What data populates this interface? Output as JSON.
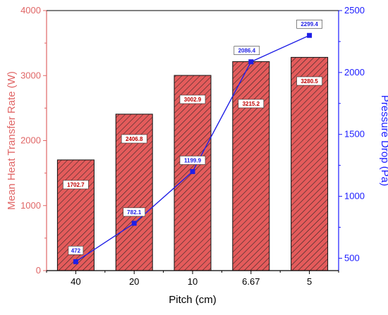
{
  "colors": {
    "bar_fill": "#e45b5b",
    "bar_hatch": "#222222",
    "bar_label": "#c00000",
    "line": "#1f1fe6",
    "left_axis": "#e06666",
    "right_axis": "#1a1aff",
    "label_box_border": "#333333"
  },
  "chart_data": {
    "type": "bar",
    "categories": [
      "40",
      "20",
      "10",
      "6.67",
      "5"
    ],
    "xlabel": "Pitch (cm)",
    "grid": false,
    "series": [
      {
        "name": "Mean Heat Transfer Rate (W)",
        "type": "bar",
        "axis": "left",
        "values": [
          1702.7,
          2406.8,
          3002.9,
          3215.2,
          3280.5
        ],
        "labels": [
          "1702.7",
          "2406.8",
          "3002.9",
          "3215.2",
          "3280.5"
        ]
      },
      {
        "name": "Pressure Drop (Pa)",
        "type": "line",
        "axis": "right",
        "values": [
          472,
          782.1,
          1199.9,
          2086.4,
          2299.4
        ],
        "labels": [
          "472",
          "782.1",
          "1199.9",
          "2086.4",
          "2299.4"
        ]
      }
    ],
    "y_left": {
      "label": "Mean Heat Transfer Rate (W)",
      "ylim": [
        0,
        4000
      ],
      "ticks": [
        "0",
        "1000",
        "2000",
        "3000",
        "4000"
      ]
    },
    "y_right": {
      "label": "Pressure Drop (Pa)",
      "ylim": [
        400,
        2500
      ],
      "ticks": [
        "500",
        "1000",
        "1500",
        "2000",
        "2500"
      ]
    }
  }
}
